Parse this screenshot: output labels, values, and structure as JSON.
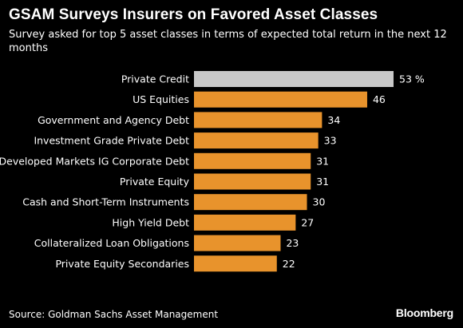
{
  "header": {
    "title": "GSAM Surveys Insurers on Favored Asset Classes",
    "subtitle": "Survey asked for top 5 asset classes in terms of expected total return in the next 12 months"
  },
  "footer": {
    "source": "Source: Goldman Sachs Asset Management",
    "brand": "Bloomberg"
  },
  "colors": {
    "highlight": "#c8c8c8",
    "bar": "#e8932c",
    "background": "#000000",
    "text": "#ffffff"
  },
  "chart_data": {
    "type": "bar",
    "orientation": "horizontal",
    "categories": [
      "Private Credit",
      "US Equities",
      "Government and Agency Debt",
      "Investment Grade Private Debt",
      "Developed Markets IG Corporate Debt",
      "Private Equity",
      "Cash and Short-Term Instruments",
      "High Yield Debt",
      "Collateralized Loan Obligations",
      "Private Equity Secondaries"
    ],
    "values": [
      53,
      46,
      34,
      33,
      31,
      31,
      30,
      27,
      23,
      22
    ],
    "value_labels": [
      "53 %",
      "46",
      "34",
      "33",
      "31",
      "31",
      "30",
      "27",
      "23",
      "22"
    ],
    "highlighted_index": 0,
    "xlim": [
      0,
      53
    ],
    "grid": false,
    "legend": "none"
  }
}
